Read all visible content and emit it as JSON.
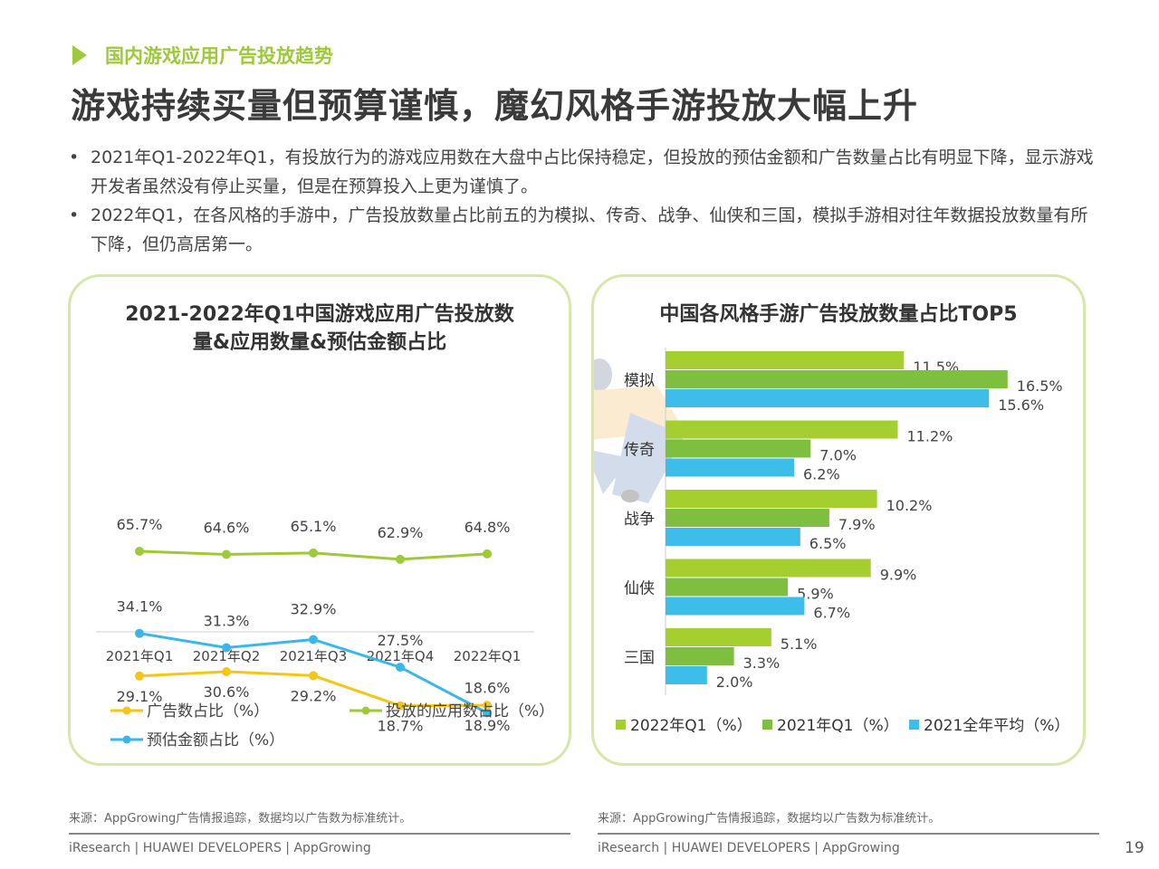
{
  "header": {
    "section": "国内游戏应用广告投放趋势",
    "title": "游戏持续买量但预算谨慎，魔幻风格手游投放大幅上升"
  },
  "bullets": [
    "2021年Q1-2022年Q1，有投放行为的游戏应用数在大盘中占比保持稳定，但投放的预估金额和广告数量占比有明显下降，显示游戏开发者虽然没有停止买量，但是在预算投入上更为谨慎了。",
    "2022年Q1，在各风格的手游中，广告投放数量占比前五的为模拟、传奇、战争、仙侠和三国，模拟手游相对往年数据投放数量有所下降，但仍高居第一。"
  ],
  "chart_data": [
    {
      "type": "line",
      "title": "2021-2022年Q1中国游戏应用广告投放数量&应用数量&预估金额占比",
      "title_lines": [
        "2021-2022年Q1中国游戏应用广告投放数",
        "量&应用数量&预估金额占比"
      ],
      "categories": [
        "2021年Q1",
        "2021年Q2",
        "2021年Q3",
        "2021年Q4",
        "2022年Q1"
      ],
      "series": [
        {
          "name": "广告数占比（%）",
          "color": "#f5c518",
          "values": [
            29.1,
            30.6,
            29.2,
            18.7,
            18.9
          ],
          "labels": [
            "29.1%",
            "30.6%",
            "29.2%",
            "18.7%",
            "18.9%"
          ]
        },
        {
          "name": "投放的应用数占比（%）",
          "color": "#9dc93a",
          "values": [
            65.7,
            64.6,
            65.1,
            62.9,
            64.8
          ],
          "labels": [
            "65.7%",
            "64.6%",
            "65.1%",
            "62.9%",
            "64.8%"
          ]
        },
        {
          "name": "预估金额占比（%）",
          "color": "#3ab6e8",
          "values": [
            34.1,
            31.3,
            32.9,
            27.5,
            18.6
          ],
          "labels": [
            "34.1%",
            "31.3%",
            "32.9%",
            "27.5%",
            "18.6%"
          ]
        }
      ],
      "legend_position": "bottom",
      "grid": false
    },
    {
      "type": "bar",
      "orientation": "horizontal",
      "title": "中国各风格手游广告投放数量占比TOP5",
      "categories": [
        "模拟",
        "传奇",
        "战争",
        "仙侠",
        "三国"
      ],
      "series": [
        {
          "name": "2022年Q1（%）",
          "color": "#a5cf2e",
          "values": [
            11.5,
            11.2,
            10.2,
            9.9,
            5.1
          ],
          "labels": [
            "11.5%",
            "11.2%",
            "10.2%",
            "9.9%",
            "5.1%"
          ]
        },
        {
          "name": "2021年Q1（%）",
          "color": "#7fbf3f",
          "values": [
            16.5,
            7.0,
            7.9,
            5.9,
            3.3
          ],
          "labels": [
            "16.5%",
            "7.0%",
            "7.9%",
            "5.9%",
            "3.3%"
          ]
        },
        {
          "name": "2021全年平均（%）",
          "color": "#3dbde9",
          "values": [
            15.6,
            6.2,
            6.5,
            6.7,
            2.0
          ],
          "labels": [
            "15.6%",
            "6.2%",
            "6.5%",
            "6.7%",
            "2.0%"
          ]
        }
      ],
      "xlim": [
        0,
        20
      ],
      "legend_position": "bottom",
      "grid": false
    }
  ],
  "sources": {
    "left": "来源：AppGrowing广告情报追踪，数据均以广告数为标准统计。",
    "right": "来源：AppGrowing广告情报追踪，数据均以广告数为标准统计。"
  },
  "footer": {
    "left": "iResearch | HUAWEI DEVELOPERS | AppGrowing",
    "right": "iResearch | HUAWEI DEVELOPERS | AppGrowing",
    "page": "19"
  }
}
